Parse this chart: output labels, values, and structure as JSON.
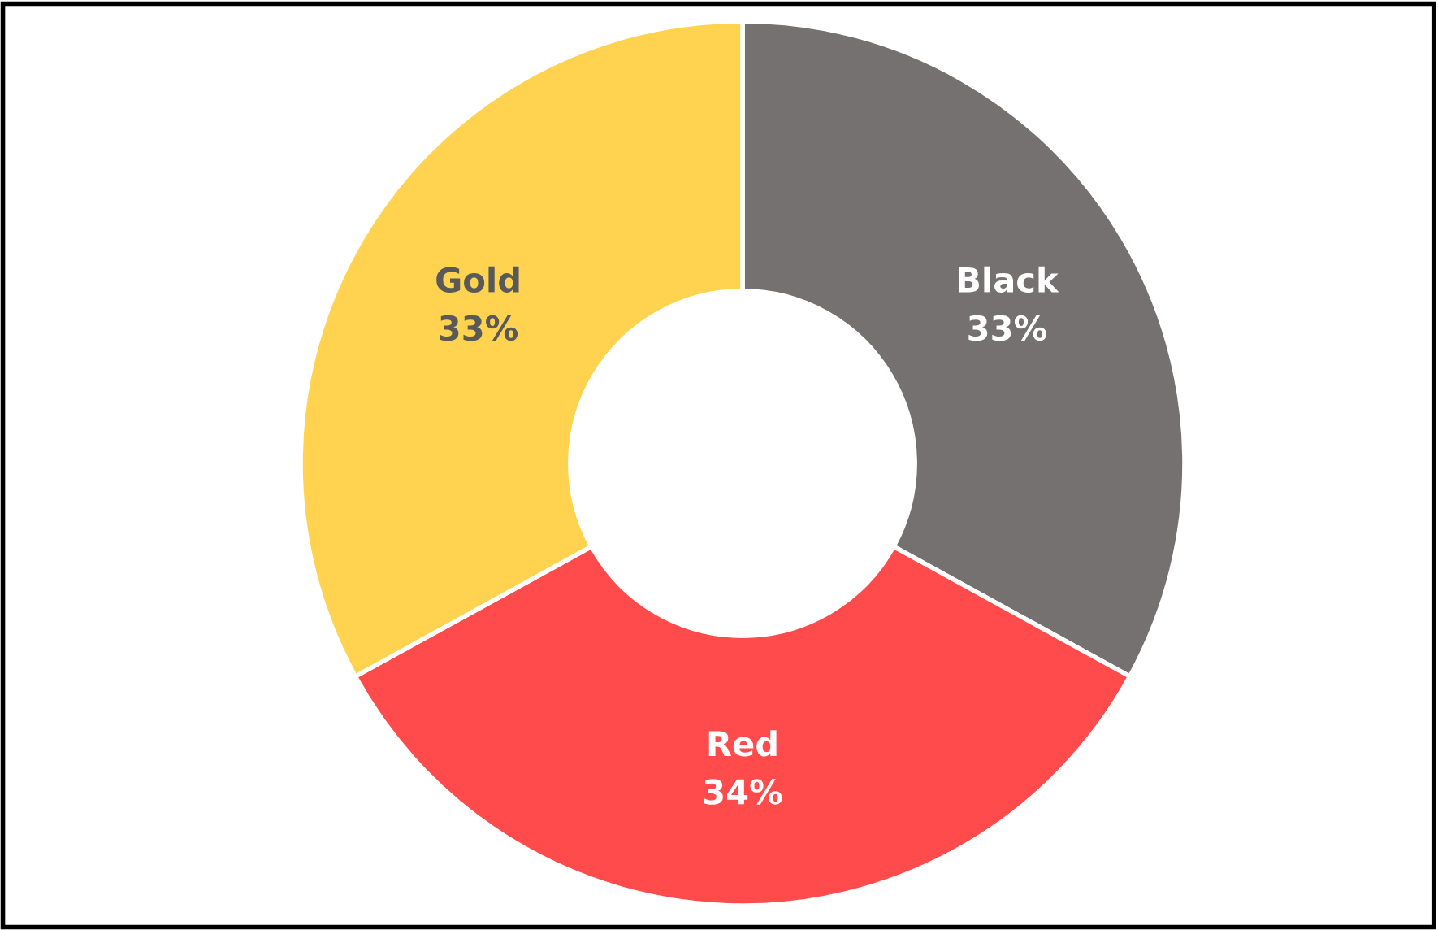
{
  "chart_data": {
    "type": "donut",
    "categories": [
      "Black",
      "Red",
      "Gold"
    ],
    "values": [
      33,
      34,
      33
    ],
    "colors": [
      "#767171",
      "#ff4b4b",
      "#ffd34f"
    ],
    "value_labels": [
      "33%",
      "34%",
      "33%"
    ],
    "legend": false
  }
}
